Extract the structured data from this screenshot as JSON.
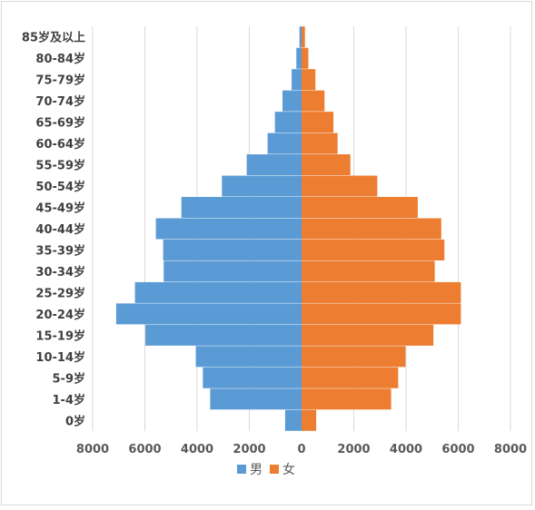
{
  "chart_data": {
    "type": "bar",
    "orientation": "horizontal",
    "categories": [
      "85岁及以上",
      "80-84岁",
      "75-79岁",
      "70-74岁",
      "65-69岁",
      "60-64岁",
      "55-59岁",
      "50-54岁",
      "45-49岁",
      "40-44岁",
      "35-39岁",
      "30-34岁",
      "25-29岁",
      "20-24岁",
      "15-19岁",
      "10-14岁",
      "5-9岁",
      "1-4岁",
      "0岁"
    ],
    "series": [
      {
        "name": "男",
        "color": "#5b9bd5",
        "values": [
          -80,
          -200,
          -380,
          -730,
          -1020,
          -1300,
          -2100,
          -3050,
          -4600,
          -5580,
          -5300,
          -5280,
          -6380,
          -7100,
          -5980,
          -4050,
          -3780,
          -3500,
          -630
        ]
      },
      {
        "name": "女",
        "color": "#ed7d31",
        "values": [
          130,
          260,
          530,
          880,
          1220,
          1380,
          1870,
          2900,
          4450,
          5350,
          5470,
          5100,
          6100,
          6100,
          5050,
          3980,
          3700,
          3430,
          560
        ]
      }
    ],
    "xlim": [
      -8000,
      8000
    ],
    "xticks": [
      -8000,
      -6000,
      -4000,
      -2000,
      0,
      2000,
      4000,
      6000,
      8000
    ],
    "xtick_labels": [
      "8000",
      "6000",
      "4000",
      "2000",
      "0",
      "2000",
      "4000",
      "6000",
      "8000"
    ],
    "grid": true,
    "legend": "bottom"
  }
}
